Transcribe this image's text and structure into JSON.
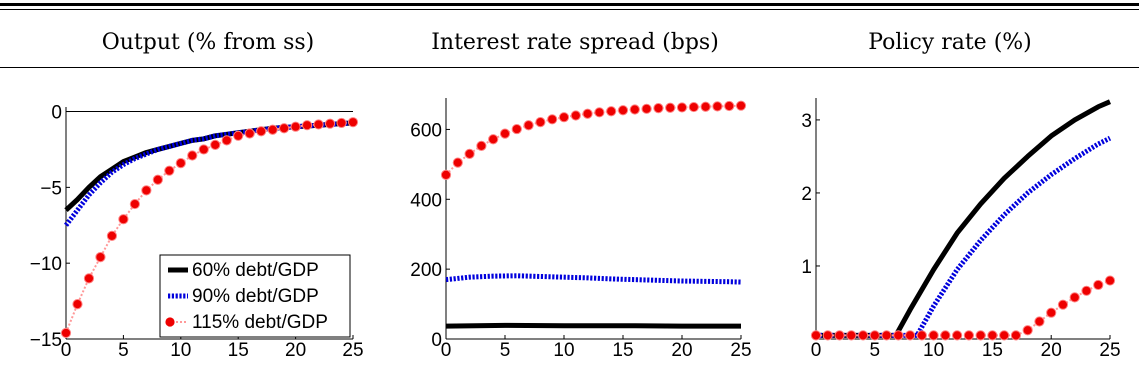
{
  "titles": [
    "Output (% from ss)",
    "Interest rate spread (bps)",
    "Policy rate (%)"
  ],
  "colors": {
    "s60": "#000000",
    "s90": "#0000dd",
    "s115": "#ee0000",
    "s115_line": "#ff9999"
  },
  "chart_data": [
    {
      "type": "line",
      "title": "Output (% from ss)",
      "xlim": [
        0,
        25
      ],
      "ylim": [
        -15,
        0.3
      ],
      "xticks": [
        0,
        5,
        10,
        15,
        20,
        25
      ],
      "yticks": [
        -15,
        -10,
        -5,
        0
      ],
      "grid": false,
      "legend": "bottom-right",
      "series": [
        {
          "name": "60% debt/GDP",
          "style": "solid-black-thick",
          "x": [
            0,
            1,
            2,
            3,
            4,
            5,
            6,
            7,
            8,
            9,
            10,
            11,
            12,
            13,
            14,
            15,
            16,
            17,
            18,
            19,
            20,
            21,
            22,
            23,
            24,
            25
          ],
          "y": [
            -6.5,
            -5.8,
            -5.0,
            -4.3,
            -3.8,
            -3.3,
            -3.0,
            -2.7,
            -2.5,
            -2.3,
            -2.1,
            -1.9,
            -1.8,
            -1.6,
            -1.5,
            -1.4,
            -1.3,
            -1.2,
            -1.1,
            -1.05,
            -1.0,
            -0.95,
            -0.9,
            -0.85,
            -0.8,
            -0.75
          ]
        },
        {
          "name": "90% debt/GDP",
          "style": "dotted-blue",
          "x": [
            0,
            1,
            2,
            3,
            4,
            5,
            6,
            7,
            8,
            9,
            10,
            11,
            12,
            13,
            14,
            15,
            16,
            17,
            18,
            19,
            20,
            21,
            22,
            23,
            24,
            25
          ],
          "y": [
            -7.5,
            -6.5,
            -5.5,
            -4.7,
            -4.0,
            -3.5,
            -3.1,
            -2.8,
            -2.5,
            -2.3,
            -2.1,
            -1.9,
            -1.8,
            -1.6,
            -1.5,
            -1.4,
            -1.3,
            -1.2,
            -1.1,
            -1.05,
            -1.0,
            -0.95,
            -0.9,
            -0.85,
            -0.8,
            -0.75
          ]
        },
        {
          "name": "115% debt/GDP",
          "style": "red-circles",
          "x": [
            0,
            1,
            2,
            3,
            4,
            5,
            6,
            7,
            8,
            9,
            10,
            11,
            12,
            13,
            14,
            15,
            16,
            17,
            18,
            19,
            20,
            21,
            22,
            23,
            24,
            25
          ],
          "y": [
            -14.6,
            -12.7,
            -11.0,
            -9.6,
            -8.2,
            -7.1,
            -6.1,
            -5.2,
            -4.5,
            -3.9,
            -3.4,
            -2.9,
            -2.5,
            -2.2,
            -1.9,
            -1.6,
            -1.45,
            -1.3,
            -1.2,
            -1.1,
            -1.0,
            -0.9,
            -0.85,
            -0.8,
            -0.75,
            -0.7
          ]
        }
      ]
    },
    {
      "type": "line",
      "title": "Interest rate spread (bps)",
      "xlim": [
        0,
        25
      ],
      "ylim": [
        0,
        690
      ],
      "xticks": [
        0,
        5,
        10,
        15,
        20,
        25
      ],
      "yticks": [
        0,
        200,
        400,
        600
      ],
      "grid": false,
      "series": [
        {
          "name": "60% debt/GDP",
          "style": "solid-black-thick",
          "x": [
            0,
            5,
            10,
            15,
            20,
            25
          ],
          "y": [
            37,
            39,
            38,
            38,
            37,
            37
          ]
        },
        {
          "name": "90% debt/GDP",
          "style": "dotted-blue",
          "x": [
            0,
            2,
            4,
            6,
            8,
            10,
            12,
            14,
            16,
            18,
            20,
            22,
            24,
            25
          ],
          "y": [
            170,
            177,
            180,
            181,
            179,
            177,
            175,
            172,
            170,
            168,
            166,
            165,
            164,
            163
          ]
        },
        {
          "name": "115% debt/GDP",
          "style": "red-circles",
          "x": [
            0,
            1,
            2,
            3,
            4,
            5,
            6,
            7,
            8,
            9,
            10,
            11,
            12,
            13,
            14,
            15,
            16,
            17,
            18,
            19,
            20,
            21,
            22,
            23,
            24,
            25
          ],
          "y": [
            470,
            505,
            530,
            553,
            572,
            588,
            601,
            612,
            621,
            629,
            635,
            640,
            645,
            649,
            652,
            655,
            657,
            659,
            661,
            662,
            663,
            664,
            665,
            666,
            667,
            668
          ]
        }
      ]
    },
    {
      "type": "line",
      "title": "Policy rate (%)",
      "xlim": [
        0,
        25
      ],
      "ylim": [
        0,
        3.3
      ],
      "xticks": [
        0,
        5,
        10,
        15,
        20,
        25
      ],
      "yticks": [
        1,
        2,
        3
      ],
      "grid": false,
      "series": [
        {
          "name": "60% debt/GDP",
          "style": "solid-black-thick",
          "x": [
            0,
            6.8,
            8,
            10,
            12,
            14,
            16,
            18,
            20,
            22,
            24,
            25
          ],
          "y": [
            0.05,
            0.05,
            0.4,
            0.95,
            1.45,
            1.85,
            2.2,
            2.5,
            2.78,
            3.0,
            3.18,
            3.25
          ]
        },
        {
          "name": "90% debt/GDP",
          "style": "dotted-blue",
          "x": [
            0,
            8.6,
            10,
            12,
            14,
            16,
            18,
            20,
            22,
            24,
            25
          ],
          "y": [
            0.05,
            0.05,
            0.45,
            0.95,
            1.35,
            1.7,
            2.0,
            2.25,
            2.47,
            2.67,
            2.75
          ]
        },
        {
          "name": "115% debt/GDP",
          "style": "red-circles",
          "x": [
            0,
            1,
            2,
            3,
            4,
            5,
            6,
            7,
            8,
            9,
            10,
            11,
            12,
            13,
            14,
            15,
            16,
            17,
            18,
            19,
            20,
            21,
            22,
            23,
            24,
            25
          ],
          "y": [
            0.05,
            0.05,
            0.05,
            0.05,
            0.05,
            0.05,
            0.05,
            0.05,
            0.05,
            0.05,
            0.05,
            0.05,
            0.05,
            0.05,
            0.05,
            0.05,
            0.05,
            0.05,
            0.12,
            0.24,
            0.36,
            0.47,
            0.57,
            0.66,
            0.74,
            0.8
          ]
        }
      ]
    }
  ]
}
